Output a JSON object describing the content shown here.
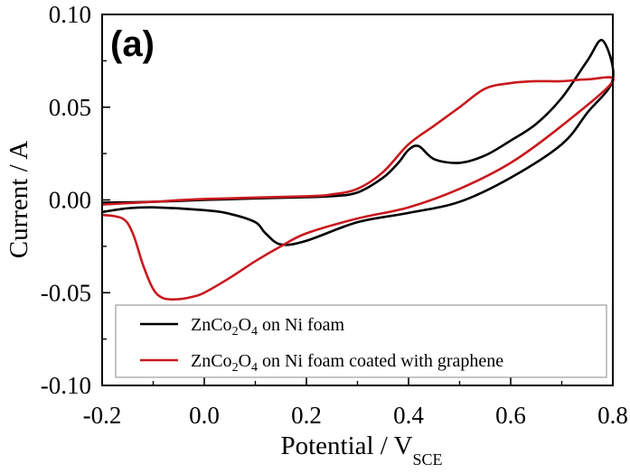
{
  "chart_data": {
    "type": "line",
    "panel_label": "(a)",
    "xlabel": "Potential / V",
    "xlabel_sub": "SCE",
    "ylabel": "Current / A",
    "xlim": [
      -0.2,
      0.8
    ],
    "ylim": [
      -0.1,
      0.1
    ],
    "x_ticks": [
      "-0.2",
      "0.0",
      "0.2",
      "0.4",
      "0.6",
      "0.8"
    ],
    "y_ticks": [
      "-0.10",
      "-0.05",
      "0.00",
      "0.05",
      "0.10"
    ],
    "grid": false,
    "legend_position": "bottom-right",
    "colors": {
      "black_series": "#000000",
      "red_series": "#c8191e"
    },
    "series": [
      {
        "legend_parts": [
          "ZnCo",
          "2",
          "O",
          "4",
          " on Ni foam"
        ],
        "color": "#000000",
        "x": [
          -0.2,
          -0.15,
          -0.1,
          0,
          0.05,
          0.1,
          0.12,
          0.15,
          0.2,
          0.3,
          0.4,
          0.5,
          0.6,
          0.7,
          0.75,
          0.8,
          0.78,
          0.75,
          0.7,
          0.65,
          0.6,
          0.55,
          0.5,
          0.45,
          0.42,
          0.4,
          0.38,
          0.35,
          0.3,
          0.25,
          0.2,
          0.1,
          0,
          -0.1,
          -0.2
        ],
        "y": [
          -0.0065,
          -0.0045,
          -0.004,
          -0.0055,
          -0.0075,
          -0.012,
          -0.018,
          -0.024,
          -0.022,
          -0.012,
          -0.007,
          -0.001,
          0.012,
          0.03,
          0.047,
          0.065,
          0.086,
          0.075,
          0.055,
          0.041,
          0.032,
          0.024,
          0.02,
          0.022,
          0.029,
          0.027,
          0.02,
          0.012,
          0.004,
          0.002,
          0.0015,
          0.0008,
          0,
          -0.001,
          -0.0015
        ]
      },
      {
        "legend_parts": [
          "ZnCo",
          "2",
          "O",
          "4",
          " on Ni foam coated with graphene"
        ],
        "color": "#c8191e",
        "x": [
          -0.2,
          -0.16,
          -0.14,
          -0.12,
          -0.1,
          -0.08,
          -0.05,
          -0.02,
          0,
          0.05,
          0.1,
          0.15,
          0.2,
          0.3,
          0.4,
          0.5,
          0.6,
          0.7,
          0.8,
          0.75,
          0.7,
          0.65,
          0.6,
          0.55,
          0.5,
          0.45,
          0.4,
          0.35,
          0.3,
          0.25,
          0.2,
          0,
          -0.1,
          -0.2
        ],
        "y": [
          -0.008,
          -0.01,
          -0.018,
          -0.035,
          -0.048,
          -0.053,
          -0.0535,
          -0.052,
          -0.05,
          -0.042,
          -0.033,
          -0.025,
          -0.018,
          -0.01,
          -0.004,
          0.006,
          0.02,
          0.04,
          0.064,
          0.065,
          0.064,
          0.064,
          0.063,
          0.06,
          0.05,
          0.04,
          0.03,
          0.015,
          0.006,
          0.003,
          0.002,
          0.0005,
          -0.001,
          -0.0025
        ]
      }
    ]
  }
}
